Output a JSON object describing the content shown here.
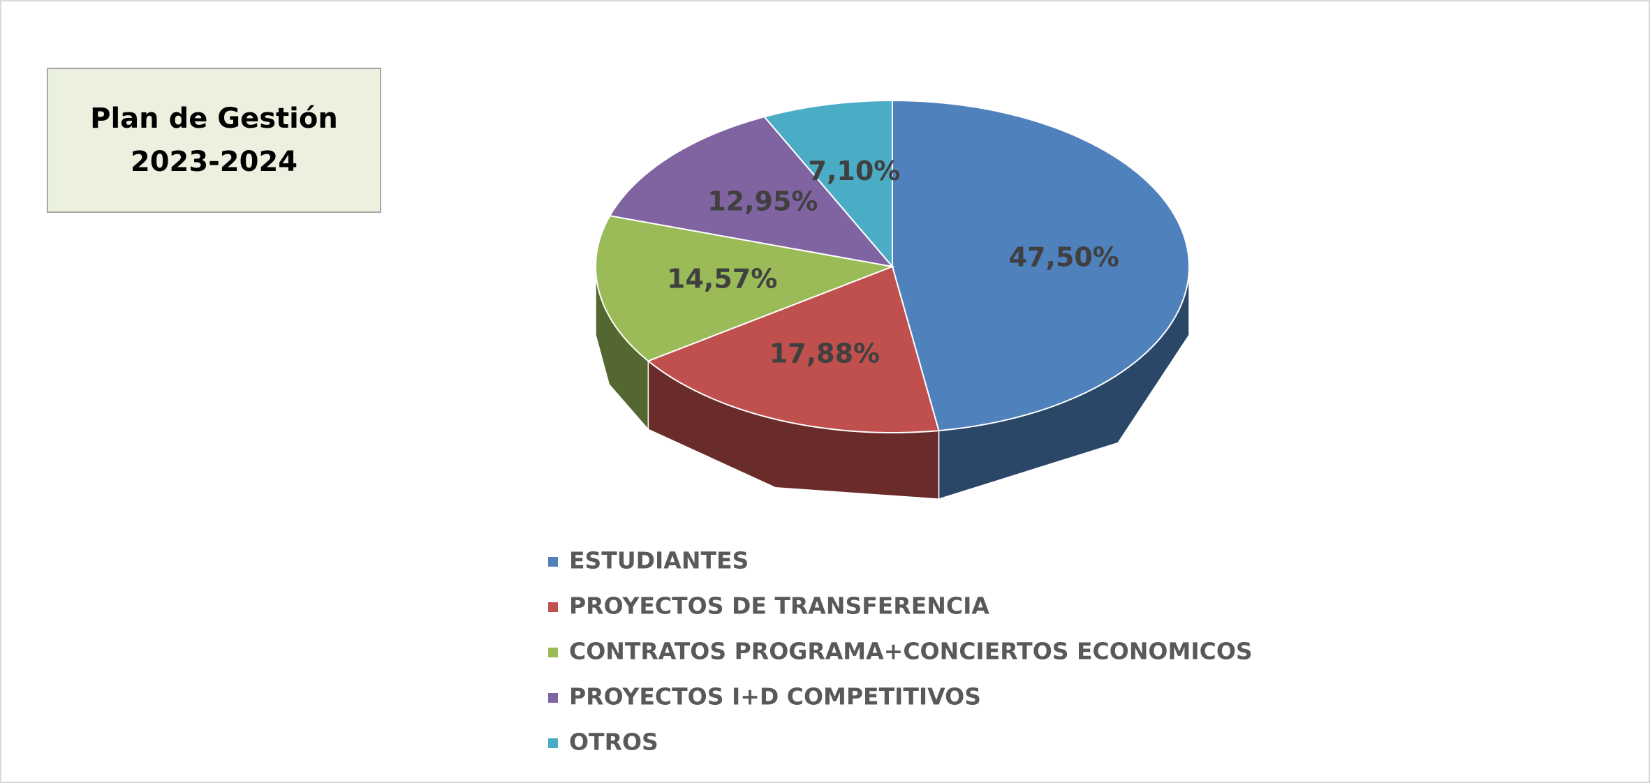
{
  "chart_data": {
    "type": "pie3d",
    "title": "Plan de Gestión 2023-2024",
    "categories": [
      "ESTUDIANTES",
      "PROYECTOS DE TRANSFERENCIA",
      "CONTRATOS PROGRAMA+CONCIERTOS ECONOMICOS",
      "PROYECTOS I+D COMPETITIVOS",
      "OTROS"
    ],
    "values": [
      47.5,
      17.88,
      14.57,
      12.95,
      7.1
    ],
    "value_labels": [
      "47,50%",
      "17,88%",
      "14,57%",
      "12,95%",
      "7,10%"
    ],
    "colors": [
      "#4f81bd",
      "#c0504d",
      "#9bbb59",
      "#8064a2",
      "#4bacc6"
    ],
    "legend": "bottom"
  }
}
